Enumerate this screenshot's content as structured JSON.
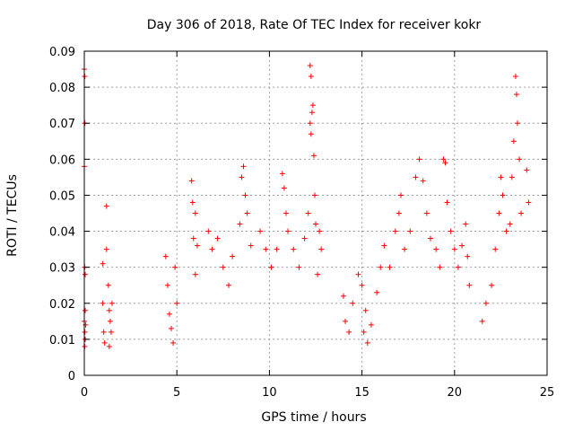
{
  "chart_data": {
    "type": "scatter",
    "title": "Day 306 of 2018, Rate Of TEC Index for receiver kokr",
    "xlabel": "GPS time / hours",
    "ylabel": "ROTI / TECUs",
    "xlim": [
      0,
      25
    ],
    "ylim": [
      0,
      0.09
    ],
    "xticks": [
      0,
      5,
      10,
      15,
      20,
      25
    ],
    "xtick_labels": [
      "0",
      "5",
      "10",
      "15",
      "20",
      "25"
    ],
    "yticks": [
      0,
      0.01,
      0.02,
      0.03,
      0.04,
      0.05,
      0.06,
      0.07,
      0.08,
      0.09
    ],
    "ytick_labels": [
      "0",
      "0.01",
      "0.02",
      "0.03",
      "0.04",
      "0.05",
      "0.06",
      "0.07",
      "0.08",
      "0.09"
    ],
    "grid": true,
    "marker": "+",
    "marker_color": "#ff0000",
    "series": [
      {
        "name": "ROTI",
        "points": [
          [
            0.0,
            0.085
          ],
          [
            0.02,
            0.083
          ],
          [
            0.03,
            0.07
          ],
          [
            0.0,
            0.058
          ],
          [
            0.02,
            0.03
          ],
          [
            0.05,
            0.028
          ],
          [
            0.0,
            0.015
          ],
          [
            0.03,
            0.012
          ],
          [
            0.05,
            0.01
          ],
          [
            0.02,
            0.008
          ],
          [
            0.07,
            0.014
          ],
          [
            0.05,
            0.018
          ],
          [
            1.0,
            0.031
          ],
          [
            1.0,
            0.02
          ],
          [
            1.05,
            0.012
          ],
          [
            1.1,
            0.009
          ],
          [
            1.2,
            0.047
          ],
          [
            1.2,
            0.035
          ],
          [
            1.3,
            0.025
          ],
          [
            1.35,
            0.018
          ],
          [
            1.4,
            0.015
          ],
          [
            1.5,
            0.02
          ],
          [
            1.45,
            0.012
          ],
          [
            1.35,
            0.008
          ],
          [
            4.4,
            0.033
          ],
          [
            4.5,
            0.025
          ],
          [
            4.6,
            0.017
          ],
          [
            4.7,
            0.013
          ],
          [
            4.8,
            0.009
          ],
          [
            4.9,
            0.03
          ],
          [
            5.0,
            0.02
          ],
          [
            5.8,
            0.054
          ],
          [
            5.85,
            0.048
          ],
          [
            5.9,
            0.038
          ],
          [
            6.0,
            0.045
          ],
          [
            6.1,
            0.036
          ],
          [
            6.0,
            0.028
          ],
          [
            6.7,
            0.04
          ],
          [
            6.9,
            0.035
          ],
          [
            7.2,
            0.038
          ],
          [
            7.5,
            0.03
          ],
          [
            7.8,
            0.025
          ],
          [
            8.0,
            0.033
          ],
          [
            8.5,
            0.055
          ],
          [
            8.6,
            0.058
          ],
          [
            8.7,
            0.05
          ],
          [
            8.8,
            0.045
          ],
          [
            8.4,
            0.042
          ],
          [
            9.0,
            0.036
          ],
          [
            9.5,
            0.04
          ],
          [
            9.8,
            0.035
          ],
          [
            10.1,
            0.03
          ],
          [
            10.4,
            0.035
          ],
          [
            10.7,
            0.056
          ],
          [
            10.8,
            0.052
          ],
          [
            10.9,
            0.045
          ],
          [
            11.0,
            0.04
          ],
          [
            11.3,
            0.035
          ],
          [
            11.6,
            0.03
          ],
          [
            11.9,
            0.038
          ],
          [
            12.1,
            0.045
          ],
          [
            12.2,
            0.086
          ],
          [
            12.25,
            0.083
          ],
          [
            12.35,
            0.075
          ],
          [
            12.3,
            0.073
          ],
          [
            12.2,
            0.07
          ],
          [
            12.25,
            0.067
          ],
          [
            12.4,
            0.061
          ],
          [
            12.45,
            0.05
          ],
          [
            12.5,
            0.042
          ],
          [
            12.7,
            0.04
          ],
          [
            12.8,
            0.035
          ],
          [
            12.6,
            0.028
          ],
          [
            14.0,
            0.022
          ],
          [
            14.1,
            0.015
          ],
          [
            14.3,
            0.012
          ],
          [
            14.5,
            0.02
          ],
          [
            14.8,
            0.028
          ],
          [
            15.0,
            0.025
          ],
          [
            15.2,
            0.018
          ],
          [
            15.1,
            0.012
          ],
          [
            15.3,
            0.009
          ],
          [
            15.5,
            0.014
          ],
          [
            15.8,
            0.023
          ],
          [
            16.0,
            0.03
          ],
          [
            16.2,
            0.036
          ],
          [
            16.5,
            0.03
          ],
          [
            16.8,
            0.04
          ],
          [
            17.0,
            0.045
          ],
          [
            17.1,
            0.05
          ],
          [
            17.3,
            0.035
          ],
          [
            17.6,
            0.04
          ],
          [
            17.9,
            0.055
          ],
          [
            18.1,
            0.06
          ],
          [
            18.3,
            0.054
          ],
          [
            18.5,
            0.045
          ],
          [
            18.7,
            0.038
          ],
          [
            19.0,
            0.035
          ],
          [
            19.2,
            0.03
          ],
          [
            19.4,
            0.06
          ],
          [
            19.5,
            0.059
          ],
          [
            19.6,
            0.048
          ],
          [
            19.8,
            0.04
          ],
          [
            20.0,
            0.035
          ],
          [
            20.2,
            0.03
          ],
          [
            20.4,
            0.036
          ],
          [
            20.6,
            0.042
          ],
          [
            20.7,
            0.033
          ],
          [
            20.8,
            0.025
          ],
          [
            21.5,
            0.015
          ],
          [
            21.7,
            0.02
          ],
          [
            22.0,
            0.025
          ],
          [
            22.2,
            0.035
          ],
          [
            22.4,
            0.045
          ],
          [
            22.5,
            0.055
          ],
          [
            22.6,
            0.05
          ],
          [
            22.8,
            0.04
          ],
          [
            23.0,
            0.042
          ],
          [
            23.1,
            0.055
          ],
          [
            23.2,
            0.065
          ],
          [
            23.3,
            0.083
          ],
          [
            23.35,
            0.078
          ],
          [
            23.4,
            0.07
          ],
          [
            23.5,
            0.06
          ],
          [
            23.6,
            0.045
          ],
          [
            23.9,
            0.057
          ],
          [
            24.0,
            0.048
          ]
        ]
      }
    ]
  }
}
